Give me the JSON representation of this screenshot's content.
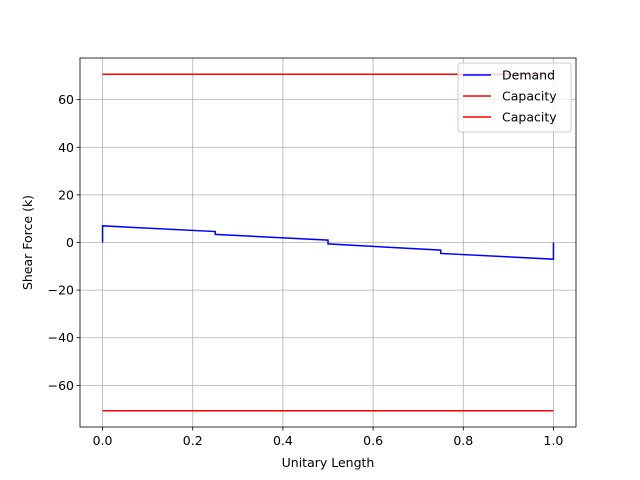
{
  "chart_data": {
    "type": "line",
    "title": "",
    "xlabel": "Unitary Length",
    "ylabel": "Shear Force (k)",
    "xlim": [
      -0.05,
      1.05
    ],
    "ylim": [
      -77.5,
      77.5
    ],
    "grid": true,
    "legend_position": "top-right",
    "xticks": [
      0.0,
      0.2,
      0.4,
      0.6,
      0.8,
      1.0
    ],
    "xtick_labels": [
      "0.0",
      "0.2",
      "0.4",
      "0.6",
      "0.8",
      "1.0"
    ],
    "yticks": [
      60,
      40,
      20,
      0,
      -20,
      -40,
      -60
    ],
    "ytick_labels": [
      "60",
      "40",
      "20",
      "0",
      "−20",
      "−40",
      "−60"
    ],
    "series": [
      {
        "name": "Demand",
        "color": "#0000ff",
        "x": [
          0,
          0,
          0.25,
          0.25,
          0.5,
          0.5,
          0.75,
          0.75,
          1.0,
          1.0
        ],
        "y": [
          0,
          7.0,
          4.6,
          3.4,
          1.0,
          -0.6,
          -3.2,
          -4.6,
          -7.0,
          0
        ]
      },
      {
        "name": "Capacity",
        "color": "#ff0000",
        "x": [
          0,
          1.0
        ],
        "y": [
          70.7,
          70.7
        ]
      },
      {
        "name": "Capacity",
        "color": "#ff0000",
        "x": [
          0,
          1.0
        ],
        "y": [
          -70.7,
          -70.7
        ]
      }
    ]
  }
}
